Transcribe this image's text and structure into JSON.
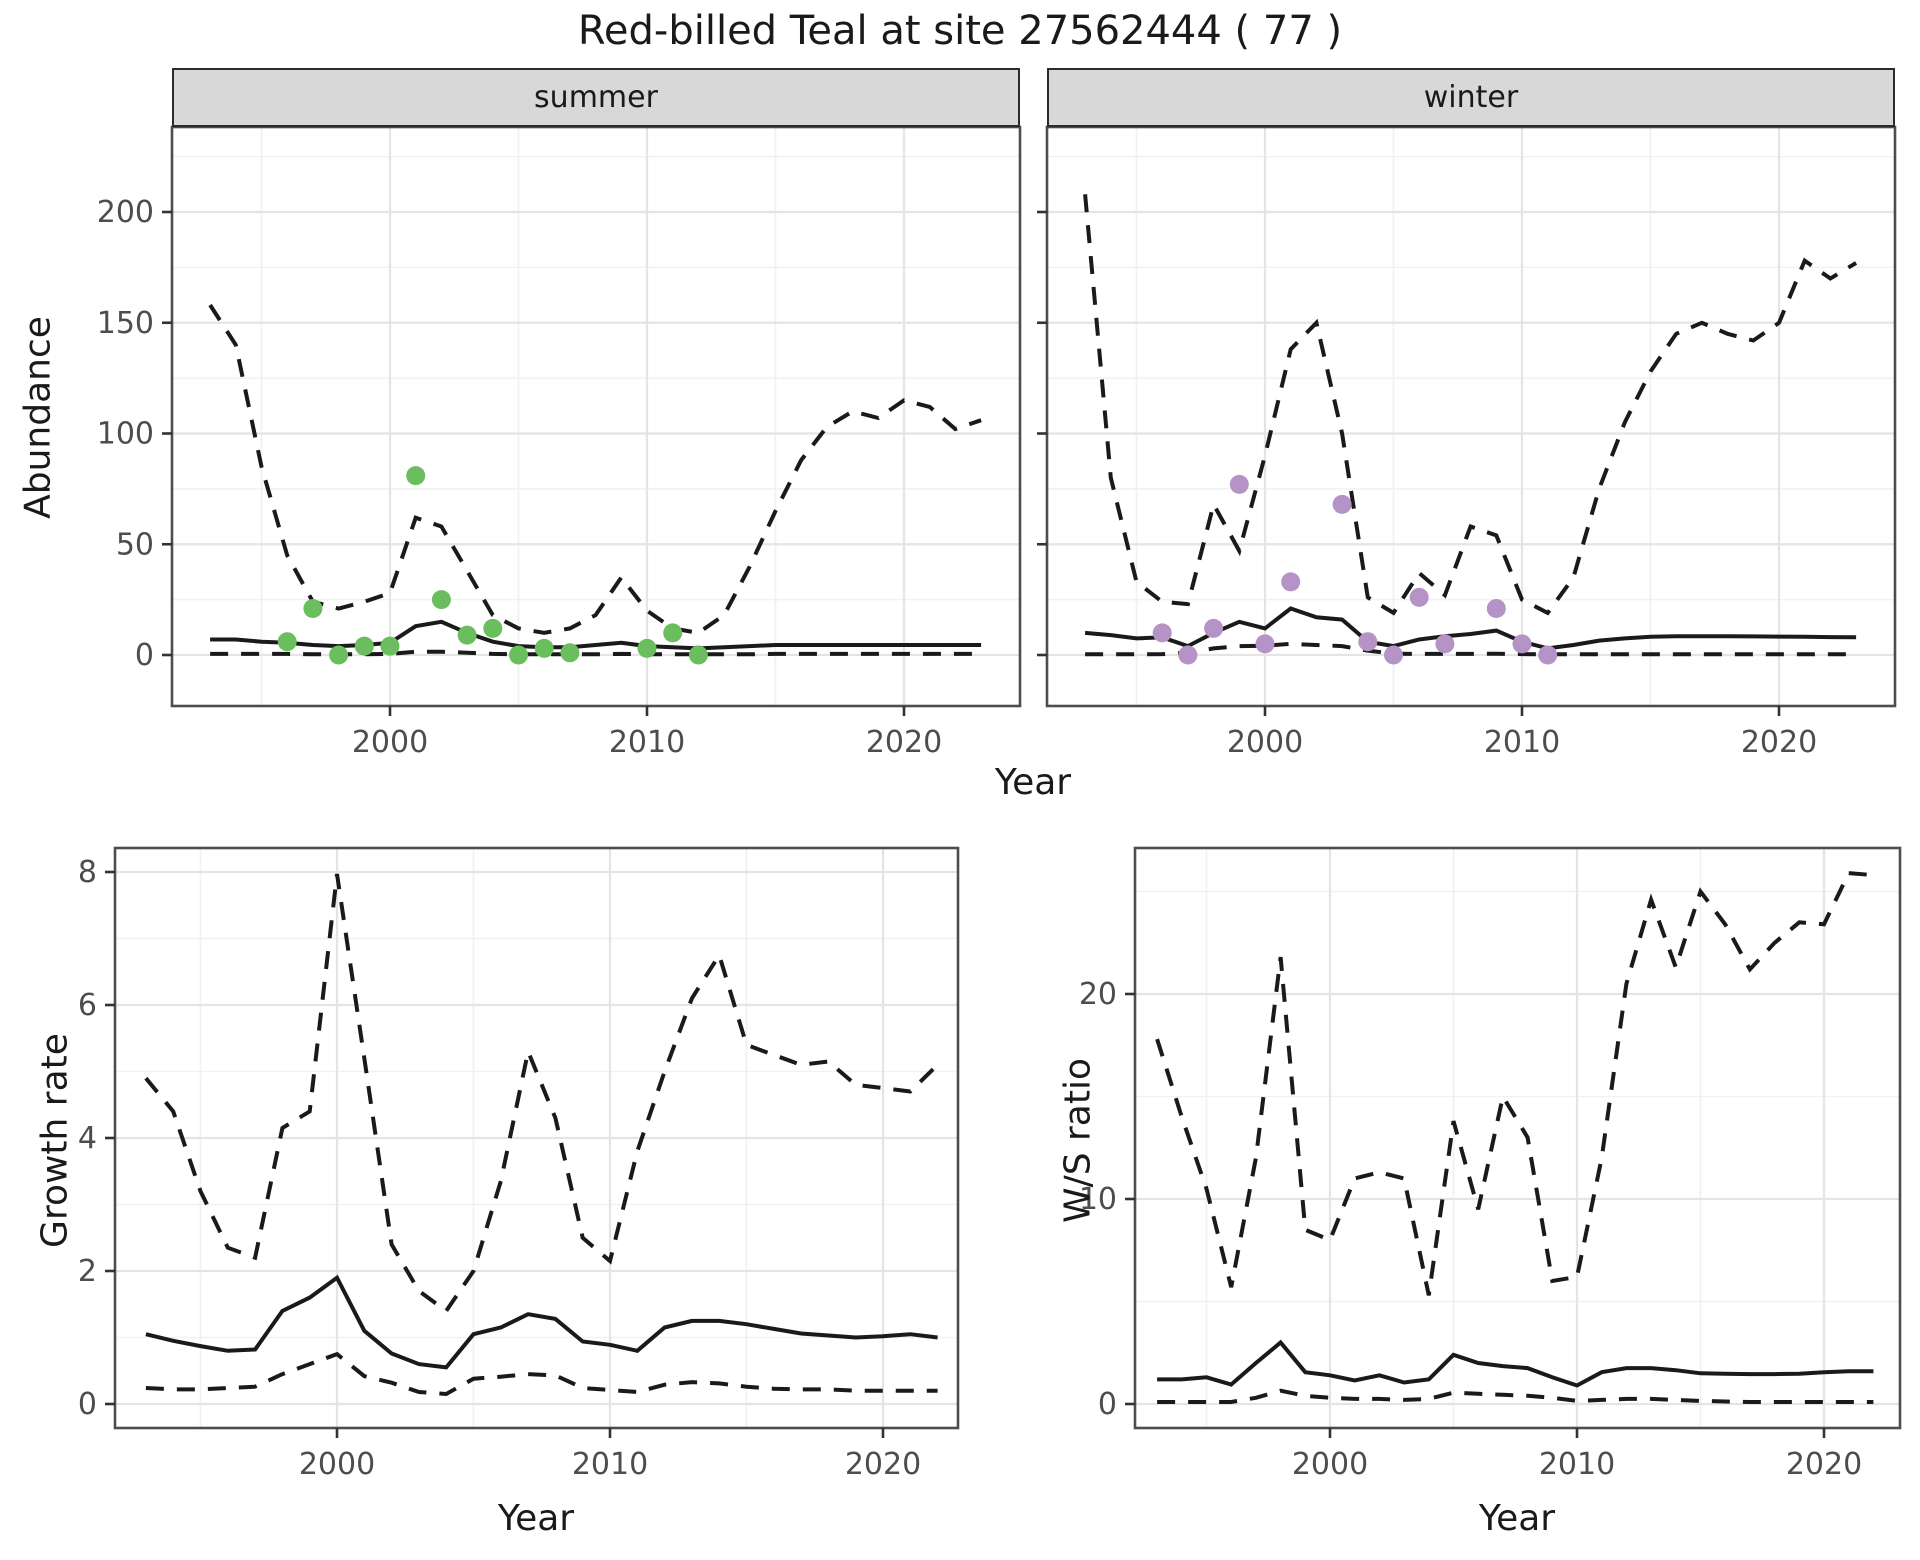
{
  "title": "Red-billed Teal at site 27562444 ( 77 )",
  "colors": {
    "summer_points": "#6ABE5D",
    "winter_points": "#B693C7",
    "line": "#1A1A1A",
    "strip_bg": "#D8D8D8",
    "panel_border": "#4D4D4D",
    "grid_major": "#E4E4E4",
    "grid_minor": "#F1F1F1",
    "tick_text": "#4D4D4D"
  },
  "chart_data": [
    {
      "id": "abundance-summer",
      "type": "line",
      "title": "summer",
      "xlabel": "Year",
      "ylabel": "Abundance",
      "xticks": [
        2000,
        2010,
        2020
      ],
      "yticks": [
        0,
        50,
        100,
        150,
        200
      ],
      "xlim": [
        1991.5,
        2024.5
      ],
      "ylim": [
        0,
        238
      ],
      "grid": true,
      "x": [
        1993,
        1994,
        1995,
        1996,
        1997,
        1998,
        1999,
        2000,
        2001,
        2002,
        2003,
        2004,
        2005,
        2006,
        2007,
        2008,
        2009,
        2010,
        2011,
        2012,
        2013,
        2014,
        2015,
        2016,
        2017,
        2018,
        2019,
        2020,
        2021,
        2022,
        2023
      ],
      "series": [
        {
          "name": "upper_95ci",
          "style": "dashed",
          "values": [
            158,
            140,
            85,
            45,
            24,
            21,
            24,
            28,
            62,
            58,
            38,
            18,
            12,
            10,
            12,
            18,
            35,
            20,
            12,
            10,
            18,
            40,
            65,
            88,
            103,
            110,
            107,
            115,
            112,
            102,
            106
          ]
        },
        {
          "name": "median",
          "style": "solid",
          "values": [
            7,
            7,
            6,
            5.5,
            4.5,
            4,
            4.5,
            5.5,
            13,
            15,
            10,
            6,
            4,
            3.5,
            3.5,
            4.5,
            5.5,
            4,
            3.5,
            3,
            3.5,
            4,
            4.5,
            4.5,
            4.5,
            4.5,
            4.5,
            4.5,
            4.5,
            4.5,
            4.5
          ]
        },
        {
          "name": "lower_95ci",
          "style": "dashed",
          "values": [
            0.5,
            0.5,
            0.5,
            0.5,
            0.3,
            0.3,
            0.3,
            0.5,
            1.5,
            1.5,
            1,
            0.5,
            0.3,
            0.3,
            0.3,
            0.3,
            0.5,
            0.3,
            0.3,
            0.3,
            0.3,
            0.3,
            0.5,
            0.5,
            0.5,
            0.5,
            0.5,
            0.5,
            0.5,
            0.5,
            0.5
          ]
        }
      ],
      "points": {
        "name": "observed-counts-summer",
        "color": "#6ABE5D",
        "values": [
          [
            1996,
            6
          ],
          [
            1997,
            21
          ],
          [
            1998,
            0
          ],
          [
            1999,
            4
          ],
          [
            2000,
            4
          ],
          [
            2001,
            81
          ],
          [
            2002,
            25
          ],
          [
            2003,
            9
          ],
          [
            2004,
            12
          ],
          [
            2005,
            0
          ],
          [
            2006,
            3
          ],
          [
            2007,
            1
          ],
          [
            2010,
            3
          ],
          [
            2011,
            10
          ],
          [
            2012,
            0
          ]
        ]
      }
    },
    {
      "id": "abundance-winter",
      "type": "line",
      "title": "winter",
      "xlabel": "Year",
      "ylabel": "Abundance",
      "xticks": [
        2000,
        2010,
        2020
      ],
      "yticks": [
        0,
        50,
        100,
        150,
        200
      ],
      "xlim": [
        1991.5,
        2024.5
      ],
      "ylim": [
        0,
        238
      ],
      "grid": true,
      "x": [
        1993,
        1994,
        1995,
        1996,
        1997,
        1998,
        1999,
        2000,
        2001,
        2002,
        2003,
        2004,
        2005,
        2006,
        2007,
        2008,
        2009,
        2010,
        2011,
        2012,
        2013,
        2014,
        2015,
        2016,
        2017,
        2018,
        2019,
        2020,
        2021,
        2022,
        2023
      ],
      "series": [
        {
          "name": "upper_95ci",
          "style": "dashed",
          "values": [
            208,
            80,
            33,
            24,
            23,
            68,
            47,
            90,
            138,
            150,
            100,
            26,
            19,
            37,
            27,
            58,
            54,
            25,
            19,
            35,
            75,
            105,
            128,
            145,
            150,
            145,
            142,
            150,
            178,
            170,
            177
          ]
        },
        {
          "name": "median",
          "style": "solid",
          "values": [
            10,
            9,
            7.5,
            8,
            4,
            10,
            15,
            12,
            21,
            17,
            16,
            6,
            4,
            7,
            8.5,
            9.5,
            11,
            6,
            3,
            4.5,
            6.5,
            7.5,
            8.2,
            8.5,
            8.5,
            8.5,
            8.4,
            8.3,
            8.2,
            8.1,
            8
          ]
        },
        {
          "name": "lower_95ci",
          "style": "dashed",
          "values": [
            0.3,
            0.3,
            0.3,
            0.4,
            1,
            3,
            4,
            4.2,
            5,
            4.5,
            4,
            2,
            0.6,
            0.5,
            0.5,
            0.5,
            0.6,
            0.4,
            0.3,
            0.3,
            0.3,
            0.3,
            0.3,
            0.3,
            0.3,
            0.3,
            0.3,
            0.3,
            0.3,
            0.3,
            0.3
          ]
        }
      ],
      "points": {
        "name": "observed-counts-winter",
        "color": "#B693C7",
        "values": [
          [
            1996,
            10
          ],
          [
            1997,
            0
          ],
          [
            1998,
            12
          ],
          [
            1999,
            77
          ],
          [
            2000,
            5
          ],
          [
            2001,
            33
          ],
          [
            2003,
            68
          ],
          [
            2004,
            6
          ],
          [
            2005,
            0
          ],
          [
            2006,
            26
          ],
          [
            2007,
            5
          ],
          [
            2009,
            21
          ],
          [
            2010,
            5
          ],
          [
            2011,
            0
          ]
        ]
      }
    },
    {
      "id": "growth-rate",
      "type": "line",
      "title": "",
      "xlabel": "Year",
      "ylabel": "Growth rate",
      "xticks": [
        2000,
        2010,
        2020
      ],
      "yticks": [
        0,
        2,
        4,
        6,
        8
      ],
      "xlim": [
        1991.9,
        2022.8
      ],
      "ylim": [
        0,
        8.4
      ],
      "grid": true,
      "x": [
        1993,
        1994,
        1995,
        1996,
        1997,
        1998,
        1999,
        2000,
        2001,
        2002,
        2003,
        2004,
        2005,
        2006,
        2007,
        2008,
        2009,
        2010,
        2011,
        2012,
        2013,
        2014,
        2015,
        2016,
        2017,
        2018,
        2019,
        2020,
        2021,
        2022
      ],
      "series": [
        {
          "name": "upper_95ci",
          "style": "dashed",
          "values": [
            4.9,
            4.4,
            3.2,
            2.35,
            2.2,
            4.15,
            4.4,
            7.97,
            5.2,
            2.4,
            1.7,
            1.4,
            2.0,
            3.35,
            5.3,
            4.3,
            2.5,
            2.15,
            3.8,
            5.0,
            6.1,
            6.75,
            5.4,
            5.25,
            5.1,
            5.15,
            4.8,
            4.75,
            4.7,
            5.1
          ]
        },
        {
          "name": "median",
          "style": "solid",
          "values": [
            1.05,
            0.95,
            0.87,
            0.8,
            0.82,
            1.4,
            1.6,
            1.9,
            1.1,
            0.76,
            0.6,
            0.55,
            1.05,
            1.15,
            1.35,
            1.28,
            0.94,
            0.89,
            0.8,
            1.15,
            1.25,
            1.25,
            1.2,
            1.13,
            1.06,
            1.03,
            1.0,
            1.02,
            1.05,
            1.0
          ]
        },
        {
          "name": "lower_95ci",
          "style": "dashed",
          "values": [
            0.24,
            0.22,
            0.22,
            0.24,
            0.26,
            0.45,
            0.6,
            0.75,
            0.42,
            0.32,
            0.18,
            0.15,
            0.38,
            0.41,
            0.45,
            0.43,
            0.24,
            0.21,
            0.18,
            0.29,
            0.33,
            0.31,
            0.26,
            0.23,
            0.22,
            0.22,
            0.2,
            0.2,
            0.2,
            0.2
          ]
        }
      ],
      "points": null
    },
    {
      "id": "ws-ratio",
      "type": "line",
      "title": "",
      "xlabel": "Year",
      "ylabel": "W/S ratio",
      "xticks": [
        2000,
        2010,
        2020
      ],
      "yticks": [
        0,
        10,
        20
      ],
      "xlim": [
        1992.1,
        2023.1
      ],
      "ylim": [
        0,
        27.1
      ],
      "grid": true,
      "x": [
        1993,
        1994,
        1995,
        1996,
        1997,
        1998,
        1999,
        2000,
        2001,
        2002,
        2003,
        2004,
        2005,
        2006,
        2007,
        2008,
        2009,
        2010,
        2011,
        2012,
        2013,
        2014,
        2015,
        2016,
        2017,
        2018,
        2019,
        2020,
        2021,
        2022
      ],
      "series": [
        {
          "name": "upper_95ci",
          "style": "dashed",
          "values": [
            17.8,
            14,
            10.5,
            5.7,
            12,
            21.8,
            8.5,
            8,
            11,
            11.3,
            11,
            5.3,
            13.8,
            9.5,
            15,
            13,
            6,
            6.2,
            12,
            20.5,
            24.6,
            21.3,
            25,
            23.4,
            21.2,
            22.5,
            23.5,
            23.4,
            25.9,
            25.8
          ]
        },
        {
          "name": "median",
          "style": "solid",
          "values": [
            1.2,
            1.2,
            1.3,
            0.95,
            2.0,
            3.0,
            1.55,
            1.4,
            1.15,
            1.4,
            1.05,
            1.2,
            2.4,
            2.0,
            1.85,
            1.75,
            1.3,
            0.9,
            1.55,
            1.75,
            1.75,
            1.65,
            1.5,
            1.48,
            1.46,
            1.46,
            1.48,
            1.55,
            1.6,
            1.6
          ]
        },
        {
          "name": "lower_95ci",
          "style": "dashed",
          "values": [
            0.1,
            0.1,
            0.1,
            0.1,
            0.3,
            0.65,
            0.4,
            0.3,
            0.25,
            0.25,
            0.2,
            0.25,
            0.55,
            0.5,
            0.45,
            0.4,
            0.3,
            0.15,
            0.2,
            0.25,
            0.25,
            0.2,
            0.15,
            0.12,
            0.1,
            0.1,
            0.1,
            0.1,
            0.1,
            0.1
          ]
        }
      ],
      "points": null
    }
  ]
}
